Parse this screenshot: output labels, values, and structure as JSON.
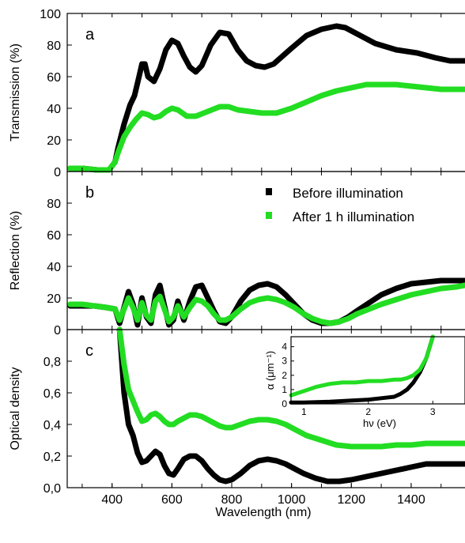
{
  "chart_data": [
    {
      "panel": "a",
      "type": "line",
      "ylabel": "Transmission (%)",
      "ylim": [
        0,
        100
      ],
      "yticks": [
        "0",
        "20",
        "40",
        "60",
        "80",
        "100"
      ],
      "series": [
        {
          "name": "Before illumination",
          "color": "#000000",
          "x": [
            260,
            300,
            350,
            390,
            410,
            420,
            440,
            460,
            475,
            490,
            500,
            510,
            520,
            540,
            560,
            580,
            600,
            620,
            640,
            660,
            680,
            700,
            730,
            760,
            790,
            820,
            850,
            880,
            910,
            940,
            1000,
            1050,
            1100,
            1150,
            1180,
            1220,
            1280,
            1350,
            1420,
            1480,
            1530,
            1580
          ],
          "values": [
            2,
            2,
            1,
            1,
            6,
            15,
            30,
            42,
            48,
            60,
            68,
            68,
            60,
            57,
            65,
            77,
            83,
            81,
            73,
            66,
            63,
            67,
            80,
            88,
            87,
            77,
            70,
            67,
            66,
            68,
            78,
            86,
            90,
            92,
            91,
            87,
            81,
            77,
            75,
            72,
            70,
            70
          ]
        },
        {
          "name": "After 1 h illumination",
          "color": "#22dd22",
          "x": [
            260,
            300,
            350,
            390,
            410,
            420,
            440,
            460,
            480,
            500,
            520,
            540,
            560,
            580,
            600,
            620,
            650,
            680,
            720,
            760,
            790,
            820,
            860,
            900,
            950,
            1000,
            1050,
            1100,
            1150,
            1200,
            1250,
            1300,
            1350,
            1400,
            1450,
            1500,
            1550,
            1580
          ],
          "values": [
            2,
            2,
            1,
            1,
            6,
            12,
            22,
            28,
            33,
            37,
            36,
            34,
            35,
            38,
            40,
            39,
            35,
            35,
            38,
            41,
            41,
            39,
            38,
            37,
            37,
            40,
            44,
            48,
            51,
            53,
            55,
            55,
            55,
            54,
            53,
            52,
            52,
            52
          ]
        }
      ]
    },
    {
      "panel": "b",
      "type": "line",
      "ylabel": "Reflection (%)",
      "ylim": [
        0,
        100
      ],
      "yticks": [
        "0",
        "20",
        "40",
        "60",
        "80"
      ],
      "legend": {
        "position": "top-right",
        "entries": [
          "Before illumination",
          "After 1 h illumination"
        ]
      },
      "series": [
        {
          "name": "Before illumination",
          "color": "#000000",
          "x": [
            260,
            300,
            340,
            380,
            410,
            425,
            440,
            455,
            470,
            485,
            500,
            515,
            530,
            545,
            560,
            575,
            590,
            605,
            620,
            640,
            660,
            680,
            700,
            720,
            740,
            760,
            780,
            800,
            830,
            860,
            890,
            920,
            950,
            980,
            1010,
            1040,
            1070,
            1100,
            1130,
            1160,
            1190,
            1220,
            1260,
            1300,
            1350,
            1400,
            1450,
            1500,
            1550,
            1580
          ],
          "values": [
            15,
            15,
            15,
            14,
            13,
            4,
            14,
            24,
            16,
            3,
            20,
            8,
            4,
            22,
            28,
            15,
            3,
            6,
            18,
            6,
            18,
            27,
            28,
            20,
            12,
            5,
            4,
            8,
            18,
            25,
            28,
            29,
            27,
            22,
            16,
            10,
            6,
            4,
            4,
            5,
            8,
            12,
            17,
            22,
            26,
            29,
            30,
            31,
            31,
            31
          ]
        },
        {
          "name": "After 1 h illumination",
          "color": "#22dd22",
          "x": [
            260,
            300,
            340,
            380,
            410,
            425,
            440,
            455,
            470,
            485,
            500,
            515,
            530,
            545,
            560,
            575,
            590,
            605,
            620,
            640,
            660,
            680,
            700,
            720,
            740,
            760,
            780,
            800,
            830,
            860,
            890,
            920,
            950,
            980,
            1010,
            1040,
            1070,
            1100,
            1130,
            1160,
            1190,
            1220,
            1260,
            1300,
            1350,
            1400,
            1450,
            1500,
            1550,
            1580
          ],
          "values": [
            16,
            16,
            15,
            14,
            13,
            6,
            13,
            20,
            14,
            6,
            17,
            9,
            6,
            18,
            21,
            13,
            5,
            8,
            15,
            8,
            14,
            19,
            18,
            15,
            10,
            6,
            6,
            8,
            13,
            17,
            19,
            20,
            19,
            17,
            14,
            10,
            7,
            5,
            4,
            5,
            7,
            10,
            13,
            16,
            19,
            22,
            24,
            26,
            27,
            28
          ]
        }
      ]
    },
    {
      "panel": "c",
      "type": "line",
      "xlabel": "Wavelength (nm)",
      "ylabel": "Optical density",
      "xlim": [
        250,
        1580
      ],
      "xticks": [
        "400",
        "600",
        "800",
        "1000",
        "1200",
        "1400"
      ],
      "ylim": [
        0,
        1
      ],
      "yticks": [
        "0,0",
        "0,2",
        "0,4",
        "0,6",
        "0,8"
      ],
      "series": [
        {
          "name": "Before illumination",
          "color": "#000000",
          "x": [
            425,
            440,
            455,
            470,
            485,
            500,
            515,
            530,
            545,
            560,
            575,
            590,
            605,
            620,
            640,
            660,
            680,
            700,
            720,
            740,
            760,
            780,
            800,
            830,
            860,
            890,
            920,
            950,
            980,
            1010,
            1040,
            1080,
            1120,
            1160,
            1200,
            1250,
            1300,
            1350,
            1400,
            1450,
            1500,
            1550,
            1580
          ],
          "values": [
            1.0,
            0.6,
            0.4,
            0.33,
            0.22,
            0.16,
            0.17,
            0.2,
            0.23,
            0.21,
            0.14,
            0.09,
            0.08,
            0.12,
            0.18,
            0.2,
            0.2,
            0.17,
            0.12,
            0.08,
            0.05,
            0.04,
            0.05,
            0.09,
            0.14,
            0.17,
            0.18,
            0.17,
            0.15,
            0.12,
            0.09,
            0.06,
            0.04,
            0.04,
            0.05,
            0.07,
            0.09,
            0.11,
            0.13,
            0.15,
            0.15,
            0.15,
            0.15
          ]
        },
        {
          "name": "After 1 h illumination",
          "color": "#22dd22",
          "x": [
            425,
            440,
            455,
            470,
            485,
            500,
            515,
            530,
            545,
            560,
            575,
            590,
            605,
            620,
            640,
            660,
            680,
            700,
            720,
            740,
            760,
            780,
            800,
            830,
            860,
            890,
            920,
            950,
            980,
            1010,
            1050,
            1100,
            1150,
            1200,
            1250,
            1300,
            1350,
            1400,
            1450,
            1500,
            1550,
            1580
          ],
          "values": [
            1.0,
            0.78,
            0.62,
            0.55,
            0.48,
            0.42,
            0.43,
            0.46,
            0.47,
            0.45,
            0.42,
            0.4,
            0.4,
            0.42,
            0.44,
            0.46,
            0.46,
            0.45,
            0.43,
            0.41,
            0.39,
            0.38,
            0.38,
            0.4,
            0.42,
            0.43,
            0.43,
            0.42,
            0.4,
            0.37,
            0.33,
            0.3,
            0.27,
            0.26,
            0.26,
            0.26,
            0.27,
            0.27,
            0.28,
            0.28,
            0.28,
            0.28
          ]
        }
      ],
      "inset": {
        "type": "line",
        "xlabel": "hν (eV)",
        "ylabel": "α (μm⁻¹)",
        "xlim": [
          0.8,
          3.5
        ],
        "xticks": [
          "1",
          "2",
          "3"
        ],
        "ylim": [
          0,
          4.7
        ],
        "yticks": [
          "0",
          "1",
          "2",
          "3",
          "4"
        ],
        "series": [
          {
            "name": "Before illumination",
            "color": "#000000",
            "x": [
              0.8,
              1.0,
              1.2,
              1.4,
              1.6,
              1.8,
              2.0,
              2.2,
              2.4,
              2.5,
              2.6,
              2.7,
              2.8,
              2.9,
              3.0
            ],
            "values": [
              0.1,
              0.1,
              0.12,
              0.15,
              0.2,
              0.25,
              0.3,
              0.4,
              0.5,
              0.7,
              1.0,
              1.5,
              2.2,
              3.2,
              4.7
            ]
          },
          {
            "name": "After 1 h illumination",
            "color": "#22dd22",
            "x": [
              0.8,
              1.0,
              1.2,
              1.4,
              1.6,
              1.8,
              2.0,
              2.2,
              2.4,
              2.5,
              2.6,
              2.7,
              2.8,
              2.9,
              3.0
            ],
            "values": [
              0.6,
              0.9,
              1.2,
              1.4,
              1.5,
              1.5,
              1.6,
              1.6,
              1.7,
              1.7,
              1.8,
              2.0,
              2.4,
              3.2,
              4.7
            ]
          }
        ]
      }
    }
  ]
}
